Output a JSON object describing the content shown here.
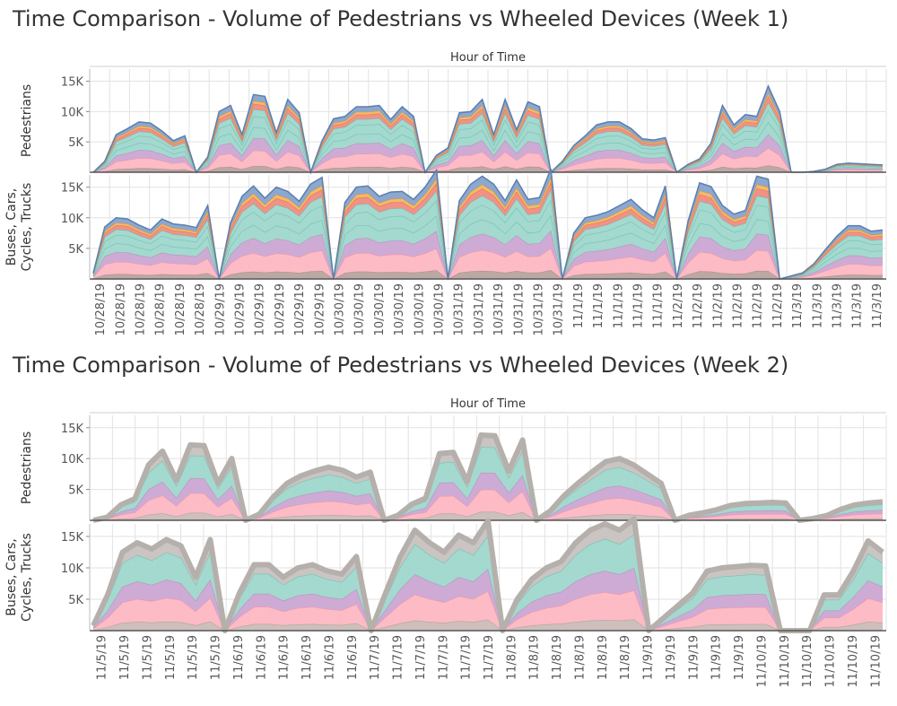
{
  "palette": {
    "base": "#b8a39e",
    "pink": "#fdb7c2",
    "pink_line": "#f29aa7",
    "purple": "#cba7d2",
    "teal": "#9fd7cc",
    "teal_line": "#6fbfb1",
    "coral": "#ef8c7f",
    "orange": "#f5b65c",
    "blue": "#86a3cc",
    "blue_line": "#5c7fae",
    "grey_band": "#b5b0ac",
    "grid": "#e2e2e2",
    "axis": "#555555"
  },
  "chart_data": [
    {
      "type": "area",
      "title": "Time Comparison - Volume of Pedestrians vs Wheeled Devices (Week 1)",
      "column_header": "Hour of Time",
      "panels": [
        {
          "label_lines": [
            "Pedestrians"
          ],
          "ylim": [
            0,
            17000
          ],
          "yticks": [
            5000,
            10000,
            15000
          ],
          "ytick_labels": [
            "5K",
            "10K",
            "15K"
          ]
        },
        {
          "label_lines": [
            "Buses, Cars,",
            "Cycles, Trucks"
          ],
          "ylim": [
            0,
            17000
          ],
          "yticks": [
            5000,
            10000,
            15000
          ],
          "ytick_labels": [
            "5K",
            "10K",
            "15K"
          ]
        }
      ],
      "x_labels": [
        "10/28/19",
        "10/28/19",
        "10/28/19",
        "10/28/19",
        "10/28/19",
        "10/28/19",
        "10/29/19",
        "10/29/19",
        "10/29/19",
        "10/29/19",
        "10/29/19",
        "10/29/19",
        "10/30/19",
        "10/30/19",
        "10/30/19",
        "10/30/19",
        "10/30/19",
        "10/30/19",
        "10/31/19",
        "10/31/19",
        "10/31/19",
        "10/31/19",
        "10/31/19",
        "10/31/19",
        "11/1/19",
        "11/1/19",
        "11/1/19",
        "11/1/19",
        "11/1/19",
        "11/2/19",
        "11/2/19",
        "11/2/19",
        "11/2/19",
        "11/2/19",
        "11/2/19",
        "11/3/19",
        "11/3/19",
        "11/3/19",
        "11/3/19",
        "11/3/19"
      ],
      "series": [
        {
          "name": "Pedestrians",
          "values": [
            0,
            1800,
            6200,
            7200,
            8300,
            8100,
            6800,
            5200,
            6000,
            0,
            2500,
            10000,
            11000,
            6200,
            12800,
            12500,
            6500,
            12000,
            9800,
            0,
            5200,
            8800,
            9200,
            10800,
            10800,
            11000,
            8700,
            10800,
            9200,
            0,
            2800,
            4000,
            9800,
            10000,
            12000,
            6200,
            12000,
            7000,
            11600,
            10800,
            0,
            1800,
            4400,
            6000,
            7800,
            8300,
            8300,
            7200,
            5500,
            5300,
            5700,
            0,
            1300,
            2200,
            4800,
            11000,
            7800,
            9500,
            9200,
            14200,
            10000,
            0,
            0,
            150,
            500,
            1300,
            1500,
            1400,
            1300,
            1200
          ]
        },
        {
          "name": "Buses, Cars, Cycles, Trucks",
          "values": [
            1000,
            8500,
            10000,
            9800,
            8800,
            8000,
            9800,
            9000,
            8800,
            8400,
            12000,
            0,
            9200,
            13500,
            15200,
            13200,
            15000,
            14300,
            12700,
            15500,
            16600,
            0,
            12500,
            15000,
            15200,
            13500,
            14200,
            14300,
            13000,
            15000,
            17800,
            0,
            12800,
            15500,
            16800,
            15500,
            12800,
            16200,
            13000,
            13300,
            18000,
            0,
            7500,
            10000,
            10400,
            11000,
            12000,
            13000,
            11300,
            10000,
            15200,
            0,
            9500,
            15700,
            15100,
            12000,
            10600,
            11200,
            16800,
            16300,
            0,
            500,
            1000,
            2500,
            4800,
            7000,
            8700,
            8700,
            7800,
            8000
          ]
        }
      ]
    },
    {
      "type": "area",
      "title": "Time Comparison - Volume of Pedestrians vs Wheeled Devices (Week 2)",
      "column_header": "Hour of Time",
      "panels": [
        {
          "label_lines": [
            "Pedestrians"
          ],
          "ylim": [
            0,
            17000
          ],
          "yticks": [
            5000,
            10000,
            15000
          ],
          "ytick_labels": [
            "5K",
            "10K",
            "15K"
          ]
        },
        {
          "label_lines": [
            "Buses, Cars,",
            "Cycles, Trucks"
          ],
          "ylim": [
            0,
            17000
          ],
          "yticks": [
            5000,
            10000,
            15000
          ],
          "ytick_labels": [
            "5K",
            "10K",
            "15K"
          ]
        }
      ],
      "x_labels": [
        "11/5/19",
        "11/5/19",
        "11/5/19",
        "11/5/19",
        "11/5/19",
        "11/5/19",
        "11/6/19",
        "11/6/19",
        "11/6/19",
        "11/6/19",
        "11/6/19",
        "11/6/19",
        "11/7/19",
        "11/7/19",
        "11/7/19",
        "11/7/19",
        "11/7/19",
        "11/7/19",
        "11/8/19",
        "11/8/19",
        "11/8/19",
        "11/8/19",
        "11/8/19",
        "11/8/19",
        "11/9/19",
        "11/9/19",
        "11/9/19",
        "11/9/19",
        "11/9/19",
        "11/10/19",
        "11/10/19",
        "11/10/19",
        "11/10/19",
        "11/10/19",
        "11/10/19"
      ],
      "series": [
        {
          "name": "Pedestrians",
          "values": [
            0,
            500,
            2500,
            3500,
            9000,
            11200,
            6500,
            12200,
            12100,
            6000,
            10000,
            0,
            1000,
            3800,
            6000,
            7200,
            8000,
            8600,
            8100,
            7000,
            7800,
            0,
            800,
            2600,
            3600,
            10800,
            11000,
            6300,
            13800,
            13700,
            8000,
            13000,
            0,
            1500,
            4000,
            6000,
            7800,
            9500,
            10000,
            9000,
            7500,
            6000,
            0,
            800,
            1200,
            1700,
            2400,
            2700,
            2800,
            2900,
            2800,
            0,
            300,
            800,
            1800,
            2500,
            2800,
            3000
          ]
        },
        {
          "name": "Buses, Cars, Cycles, Trucks",
          "values": [
            800,
            5800,
            12500,
            14000,
            13000,
            14500,
            13500,
            8500,
            14500,
            0,
            6000,
            10500,
            10500,
            8500,
            10000,
            10500,
            9500,
            9000,
            11800,
            0,
            6000,
            11800,
            16000,
            14000,
            12500,
            15200,
            14000,
            17500,
            0,
            5000,
            8200,
            10000,
            11000,
            14000,
            16000,
            17000,
            16000,
            17800,
            0,
            2000,
            4000,
            6000,
            9500,
            10000,
            10200,
            10400,
            10300,
            0,
            0,
            0,
            5700,
            5700,
            9500,
            14300,
            12500
          ]
        }
      ]
    }
  ]
}
